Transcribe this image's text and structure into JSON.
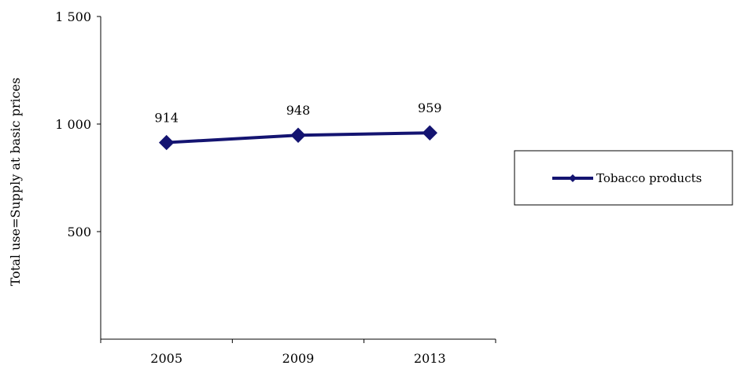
{
  "chart_data": {
    "type": "line",
    "title": "",
    "xlabel": "",
    "ylabel": "Total use=Supply at basic prices",
    "categories": [
      "2005",
      "2009",
      "2013"
    ],
    "series": [
      {
        "name": "Tobacco products",
        "values": [
          914,
          948,
          959
        ],
        "color": "#141471",
        "marker": "diamond"
      }
    ],
    "data_labels": [
      "914",
      "948",
      "959"
    ],
    "ylim": [
      0,
      1500
    ],
    "yticks": [
      500,
      1000,
      1500
    ],
    "ytick_labels": [
      "500",
      "1 000",
      "1 500"
    ],
    "grid": false,
    "legend": "right"
  }
}
